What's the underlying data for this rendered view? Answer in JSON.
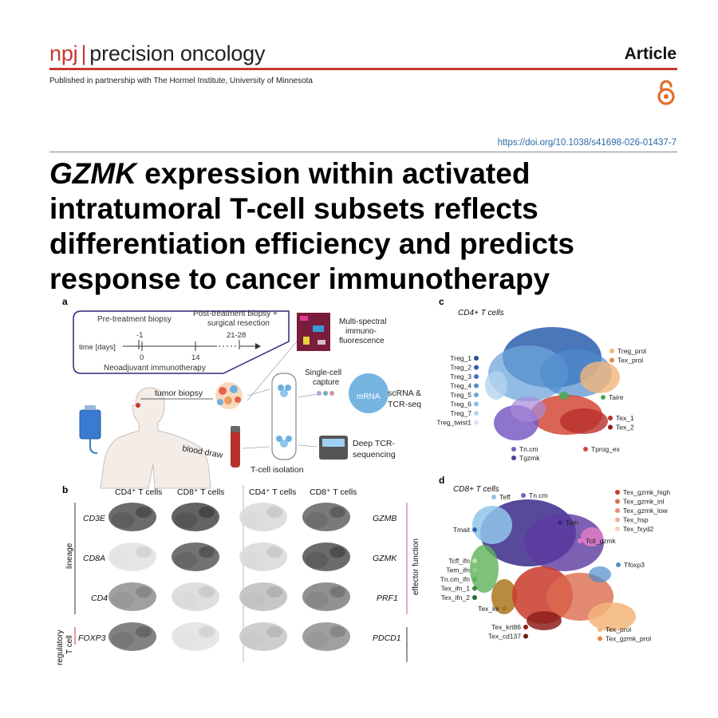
{
  "header": {
    "journal_prefix": "npj",
    "journal_sep": "|",
    "journal_name": "precision oncology",
    "article_type": "Article",
    "partnership": "Published in partnership with The Hormel Institute, University of Minnesota",
    "open_access_icon": "open-access-lock-icon",
    "doi": "https://doi.org/10.1038/s41698-026-01437-7"
  },
  "title": {
    "gene": "GZMK",
    "line1_rest": " expression within activated",
    "line2": "intratumoral T-cell subsets reflects",
    "line3": "differentiation efficiency and predicts",
    "line4": "response to cancer immunotherapy"
  },
  "colors": {
    "accent": "#c8382e",
    "doi": "#2a6aa6"
  },
  "figure": {
    "panel_a": {
      "letter": "a",
      "pre_biopsy": "Pre-treatment biopsy",
      "post_biopsy_1": "Post-treatment biopsy +",
      "post_biopsy_2": "surgical resection",
      "axis_label": "time [days]",
      "t_minus1": "-1",
      "t0": "0",
      "t14": "14",
      "t21": "21-28",
      "regimen": "Neoadjuvant immunotherapy",
      "multispectral_1": "Multi-spectral",
      "multispectral_2": "immuno-",
      "multispectral_3": "fluorescence",
      "tumor_biopsy": "tumor biopsy",
      "blood_draw": "blood draw",
      "sc_capture_1": "Single-cell",
      "sc_capture_2": "capture",
      "mrna": "mRNA",
      "scrna_1": "scRNA &",
      "scrna_2": "TCR-seq",
      "tcell_isolation": "T-cell isolation",
      "deep_tcr_1": "Deep TCR-",
      "deep_tcr_2": "sequencing"
    },
    "panel_b": {
      "letter": "b",
      "col_headers": [
        "CD4⁺ T cells",
        "CD8⁺ T cells",
        "CD4⁺ T cells",
        "CD8⁺ T cells"
      ],
      "left_genes": [
        "CD3E",
        "CD8A",
        "CD4",
        "FOXP3"
      ],
      "right_genes": [
        "GZMB",
        "GZMK",
        "PRF1",
        "PDCD1"
      ],
      "lineage_label": "lineage",
      "regulatory_label_1": "regulatory",
      "regulatory_label_2": "T cell",
      "effector_label": "effector function"
    },
    "panel_c": {
      "letter": "c",
      "title": "CD4+ T cells",
      "left_labels": [
        {
          "label": "Treg_1",
          "color": "#1f4e9c"
        },
        {
          "label": "Treg_2",
          "color": "#2a5fae"
        },
        {
          "label": "Treg_3",
          "color": "#3a75c0"
        },
        {
          "label": "Treg_4",
          "color": "#4f8ccd"
        },
        {
          "label": "Treg_5",
          "color": "#6ea6da"
        },
        {
          "label": "Treg_6",
          "color": "#8dbde6"
        },
        {
          "label": "Treg_7",
          "color": "#b3d3ef"
        },
        {
          "label": "Treg_twist1",
          "color": "#d7e7f6"
        }
      ],
      "right_top": [
        {
          "label": "Treg_prol",
          "color": "#f3b57a"
        },
        {
          "label": "Tex_prol",
          "color": "#e9893f"
        }
      ],
      "taire": {
        "label": "Taire",
        "color": "#4aa85a"
      },
      "right_bottom": [
        {
          "label": "Tex_1",
          "color": "#b8302a"
        },
        {
          "label": "Tex_2",
          "color": "#8e1f1a"
        }
      ],
      "bottom": [
        {
          "label": "Tn.cm",
          "color": "#7b5cc4"
        },
        {
          "label": "Tgzmk",
          "color": "#5b3aa0"
        },
        {
          "label": "Tprog_ex",
          "color": "#d44a3a"
        }
      ]
    },
    "panel_d": {
      "letter": "d",
      "title": "CD8+ T cells",
      "top_labels": [
        {
          "label": "Teff",
          "color": "#8fc5ea"
        },
        {
          "label": "Tn.cm",
          "color": "#7b5cc4"
        }
      ],
      "right_top": [
        {
          "label": "Tex_gzmk_high",
          "color": "#c93a2c"
        },
        {
          "label": "Tex_gzmk_inl",
          "color": "#dc6a4e"
        },
        {
          "label": "Tex_gzmk_low",
          "color": "#e98e72"
        },
        {
          "label": "Tex_hsp",
          "color": "#f1b09a"
        },
        {
          "label": "Tex_fxyd2",
          "color": "#f6cdbf"
        }
      ],
      "tem": {
        "label": "Tem",
        "color": "#3a2a8a"
      },
      "tmait": {
        "label": "Tmait",
        "color": "#2b6cb0"
      },
      "tctl": {
        "label": "Tctl_gzmk",
        "color": "#e37bc6"
      },
      "tfoxp3": {
        "label": "Tfoxp3",
        "color": "#4f8ccd"
      },
      "left_labels": [
        {
          "label": "Tcff_ifn",
          "color": "#bfe3b2"
        },
        {
          "label": "Tem_ifn",
          "color": "#8fcf7f"
        },
        {
          "label": "Tn.cm_ifn",
          "color": "#5cb25a"
        },
        {
          "label": "Tex_ifn_1",
          "color": "#3a8a3e"
        },
        {
          "label": "Tex_ifn_2",
          "color": "#236b2a"
        }
      ],
      "tex_kir": {
        "label": "Tex_kir",
        "color": "#a8781e"
      },
      "bottom_left": [
        {
          "label": "Tex_krt86",
          "color": "#8e1f1a"
        },
        {
          "label": "Tex_cd137",
          "color": "#6e1612"
        }
      ],
      "bottom_right": [
        {
          "label": "Tex_prol",
          "color": "#f3b57a"
        },
        {
          "label": "Tex_gzmk_prol",
          "color": "#e9893f"
        }
      ]
    }
  }
}
